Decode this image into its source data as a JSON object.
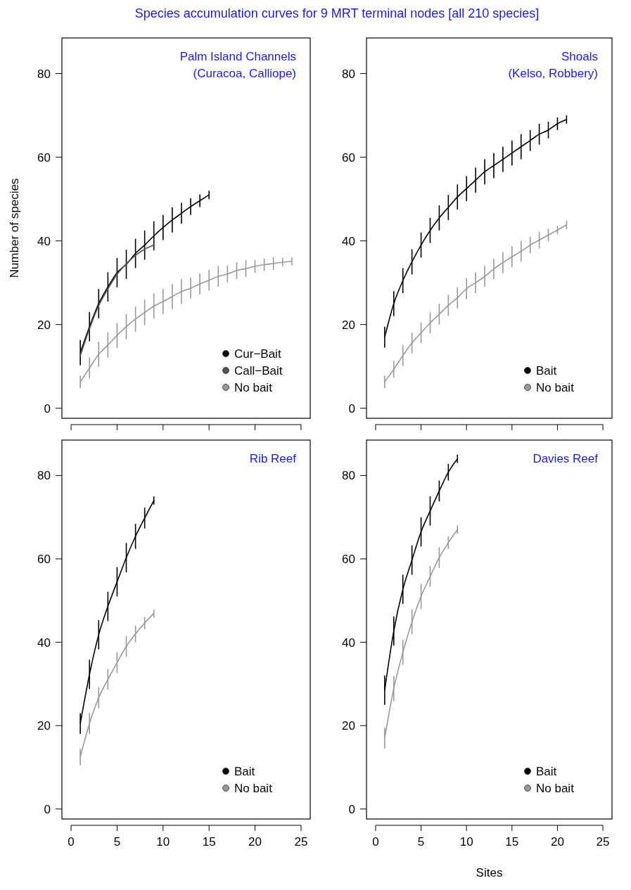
{
  "chart_data": [
    {
      "type": "line",
      "title": "Species accumulation curves for 9 MRT terminal nodes [all 210 species]",
      "subtitle": "Palm Island Channels\n(Curacoa, Calliope)",
      "ylabel": "Number of species",
      "xlim": [
        -1,
        26
      ],
      "ylim": [
        -2.4,
        88.5
      ],
      "xticks": [
        0,
        5,
        10,
        15,
        20,
        25
      ],
      "yticks": [
        0,
        20,
        40,
        60,
        80
      ],
      "tick_labels": "y",
      "legend": "bottom right",
      "series": [
        {
          "name": "Cur−Bait",
          "color": "#000000",
          "x": [
            1,
            2,
            3,
            4,
            5,
            6,
            7,
            8,
            9,
            10,
            11,
            12,
            13,
            14,
            15
          ],
          "values": [
            13.3,
            19.5,
            25,
            29,
            32.4,
            34.4,
            37,
            39,
            41.2,
            43.2,
            45,
            46.6,
            48.2,
            49.6,
            51
          ],
          "errors": [
            3,
            3.5,
            3.5,
            3.5,
            3.5,
            3.5,
            3.5,
            3.5,
            3.5,
            3,
            3,
            2.5,
            2,
            1.5,
            1
          ]
        },
        {
          "name": "Call−Bait",
          "color": "#555555",
          "x": [
            1,
            2,
            3,
            4,
            5,
            6,
            7,
            8,
            9
          ],
          "values": [
            12.5,
            19,
            24.5,
            28.5,
            32,
            34.5,
            36.5,
            38,
            39
          ]
        },
        {
          "name": "No bait",
          "color": "#999999",
          "x": [
            1,
            2,
            3,
            4,
            5,
            6,
            7,
            8,
            9,
            10,
            11,
            12,
            13,
            14,
            15,
            16,
            17,
            18,
            19,
            20,
            21,
            22,
            23,
            24
          ],
          "values": [
            6.3,
            9.6,
            12.9,
            15.1,
            17.4,
            19.5,
            21.3,
            22.9,
            24.4,
            25.5,
            26.7,
            27.9,
            28.7,
            29.7,
            30.6,
            31.5,
            32.1,
            32.9,
            33.4,
            33.9,
            34.3,
            34.6,
            34.9,
            35.1
          ],
          "errors": [
            1.5,
            2.5,
            3,
            3,
            3,
            3,
            3,
            3,
            3,
            3,
            3,
            3,
            2.5,
            2.5,
            2.5,
            2.5,
            2,
            2,
            2,
            1.5,
            1.5,
            1.5,
            1,
            1
          ]
        }
      ]
    },
    {
      "type": "line",
      "subtitle": "Shoals\n(Kelso, Robbery)",
      "xlim": [
        -1,
        26
      ],
      "ylim": [
        -2.4,
        88.5
      ],
      "xticks": [
        0,
        5,
        10,
        15,
        20,
        25
      ],
      "yticks": [
        0,
        20,
        40,
        60,
        80
      ],
      "tick_labels": "y",
      "legend": "bottom right",
      "series": [
        {
          "name": "Bait",
          "color": "#000000",
          "x": [
            1,
            2,
            3,
            4,
            5,
            6,
            7,
            8,
            9,
            10,
            11,
            12,
            13,
            14,
            15,
            16,
            17,
            18,
            19,
            20,
            21
          ],
          "values": [
            17,
            25,
            30.5,
            35,
            39,
            42.5,
            45.5,
            48,
            50.5,
            52.5,
            54.5,
            56.5,
            58,
            59.5,
            61,
            62.5,
            64,
            65.5,
            66.5,
            68,
            69
          ],
          "errors": [
            2.5,
            3,
            3,
            3,
            3,
            3,
            3,
            3,
            3,
            3,
            3,
            3,
            3,
            3,
            3,
            3,
            2.5,
            2.5,
            2,
            1.5,
            1
          ]
        },
        {
          "name": "No bait",
          "color": "#999999",
          "x": [
            1,
            2,
            3,
            4,
            5,
            6,
            7,
            8,
            9,
            10,
            11,
            12,
            13,
            14,
            15,
            16,
            17,
            18,
            19,
            20,
            21
          ],
          "values": [
            6.3,
            9.3,
            12.6,
            15.6,
            18,
            20.4,
            22.5,
            24.6,
            26.4,
            28.6,
            30,
            31.5,
            33.3,
            34.8,
            36.2,
            37.5,
            39,
            40.2,
            41.4,
            42.6,
            43.8
          ],
          "errors": [
            1.5,
            2,
            2.5,
            2.5,
            2.5,
            2.5,
            2.5,
            2.5,
            2.5,
            2.5,
            2.5,
            2.5,
            2.5,
            2.5,
            2.5,
            2.5,
            2,
            2,
            1.5,
            1,
            1
          ]
        }
      ]
    },
    {
      "type": "line",
      "subtitle": "Rib Reef",
      "xlim": [
        -1,
        26
      ],
      "ylim": [
        -2.4,
        88.5
      ],
      "xticks": [
        0,
        5,
        10,
        15,
        20,
        25
      ],
      "yticks": [
        0,
        20,
        40,
        60,
        80
      ],
      "legend": "bottom right",
      "series": [
        {
          "name": "Bait",
          "color": "#000000",
          "x": [
            1,
            2,
            3,
            4,
            5,
            6,
            7,
            8,
            9
          ],
          "values": [
            20.5,
            32.3,
            41.8,
            48.6,
            54.5,
            60.3,
            65.4,
            69.8,
            74
          ],
          "errors": [
            2.5,
            3.5,
            3.5,
            3.5,
            3.5,
            3.5,
            3,
            2.5,
            1
          ]
        },
        {
          "name": "No bait",
          "color": "#999999",
          "x": [
            1,
            2,
            3,
            4,
            5,
            6,
            7,
            8,
            9
          ],
          "values": [
            12.5,
            20.5,
            26.7,
            31.1,
            35.1,
            39,
            42,
            44.6,
            46.9
          ],
          "errors": [
            2,
            2.5,
            2.5,
            2.5,
            2.5,
            2.5,
            2,
            1.5,
            1
          ]
        }
      ]
    },
    {
      "type": "line",
      "subtitle": "Davies Reef",
      "xlabel": "Sites",
      "xlim": [
        -1,
        26
      ],
      "ylim": [
        -2.4,
        88.5
      ],
      "xticks": [
        0,
        5,
        10,
        15,
        20,
        25
      ],
      "yticks": [
        0,
        20,
        40,
        60,
        80
      ],
      "legend": "bottom right",
      "series": [
        {
          "name": "Bait",
          "color": "#000000",
          "x": [
            1,
            2,
            3,
            4,
            5,
            6,
            7,
            8,
            9
          ],
          "values": [
            28.5,
            42.7,
            52.7,
            59.7,
            66.5,
            71.5,
            76.3,
            80.8,
            84
          ],
          "errors": [
            3.5,
            3.5,
            3.5,
            3.5,
            3.5,
            3.5,
            2.5,
            2,
            1
          ]
        },
        {
          "name": "No bait",
          "color": "#999999",
          "x": [
            1,
            2,
            3,
            4,
            5,
            6,
            7,
            8,
            9
          ],
          "values": [
            17,
            28.9,
            37.6,
            44.9,
            51,
            55.8,
            60.3,
            63.9,
            67
          ],
          "errors": [
            2.5,
            3,
            3,
            3,
            3,
            2.5,
            2.5,
            1.5,
            1
          ]
        }
      ]
    }
  ]
}
